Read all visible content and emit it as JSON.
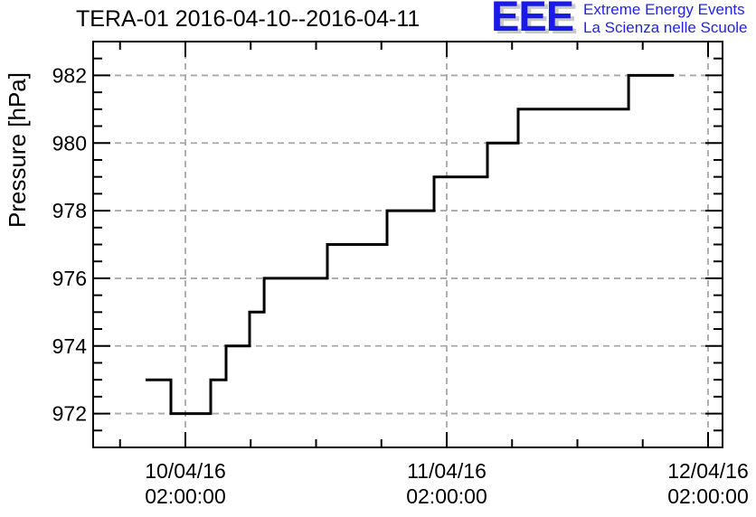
{
  "page": {
    "background_color": "#ffffff"
  },
  "header": {
    "title": "TERA-01 2016-04-10--2016-04-11"
  },
  "logo": {
    "acronym": "EEE",
    "tagline_line1": "Extreme Energy Events",
    "tagline_line2": "La Scienza nelle Scuole",
    "acronym_color": "#1a1ae8",
    "tagline_color": "#2323e6",
    "shadow_color": "#c8c8c8"
  },
  "chart_data": {
    "type": "line",
    "line_style": "step",
    "title": "TERA-01 2016-04-10--2016-04-11",
    "xlabel": "",
    "ylabel": "Pressure [hPa]",
    "legend_position": "none",
    "grid": "dashed-major-both-axes",
    "line_color": "#000000",
    "grid_color": "#a8a8a8",
    "axis_color": "#000000",
    "x_unit": "hours since 10/04/16 00:00:00",
    "xlim": [
      -6.47,
      51.33
    ],
    "ylim": [
      971,
      983
    ],
    "y_major_ticks": [
      972,
      974,
      976,
      978,
      980,
      982
    ],
    "y_minor_tick_step": 0.5,
    "x_major_ticks": [
      {
        "hours": 2,
        "label_date": "10/04/16",
        "label_time": "02:00:00"
      },
      {
        "hours": 26,
        "label_date": "11/04/16",
        "label_time": "02:00:00"
      },
      {
        "hours": 50,
        "label_date": "12/04/16",
        "label_time": "02:00:00"
      }
    ],
    "x_minor_ticks_hours": [
      -4,
      8,
      14,
      20,
      32,
      38,
      44
    ],
    "pressure_steps_hPa": [
      {
        "from_h": -1.65,
        "to_h": 0.67,
        "hPa": 973
      },
      {
        "from_h": 0.67,
        "to_h": 4.33,
        "hPa": 972
      },
      {
        "from_h": 4.33,
        "to_h": 5.74,
        "hPa": 973
      },
      {
        "from_h": 5.74,
        "to_h": 7.9,
        "hPa": 974
      },
      {
        "from_h": 7.9,
        "to_h": 9.23,
        "hPa": 975
      },
      {
        "from_h": 9.23,
        "to_h": 15.04,
        "hPa": 976
      },
      {
        "from_h": 15.04,
        "to_h": 20.52,
        "hPa": 977
      },
      {
        "from_h": 20.52,
        "to_h": 24.84,
        "hPa": 978
      },
      {
        "from_h": 24.84,
        "to_h": 29.74,
        "hPa": 979
      },
      {
        "from_h": 29.74,
        "to_h": 32.56,
        "hPa": 980
      },
      {
        "from_h": 32.56,
        "to_h": 42.7,
        "hPa": 981
      },
      {
        "from_h": 42.7,
        "to_h": 46.85,
        "hPa": 982
      }
    ]
  }
}
